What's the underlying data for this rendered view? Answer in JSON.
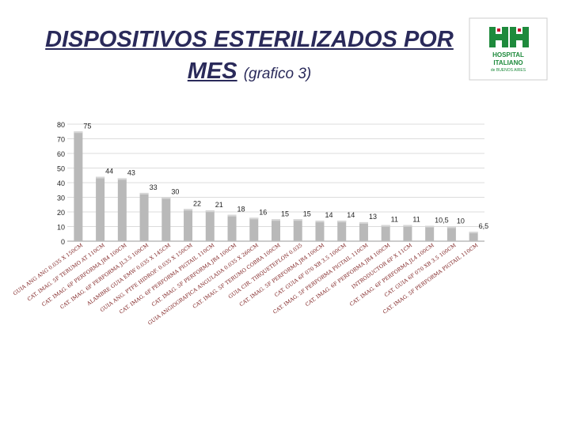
{
  "title": {
    "line1": "DISPOSITIVOS ESTERILIZADOS POR",
    "line2": "MES",
    "subtitle": "(grafico 3)"
  },
  "logo": {
    "line1": "HOSPITAL",
    "line2": "ITALIANO",
    "line3": "de BUENOS AIRES",
    "color": "#1e8a3c",
    "accent": "#c8102e"
  },
  "colors": {
    "bar": "#b9b9b9",
    "bar_top": "#d6d6d6",
    "grid": "#d0d0d0",
    "text": "#222222",
    "label": "#7a1a1a"
  },
  "chart_data": {
    "type": "bar",
    "ylim": [
      0,
      80
    ],
    "yticks": [
      0,
      10,
      20,
      30,
      40,
      50,
      60,
      70,
      80
    ],
    "grid": true,
    "categories": [
      "GUIA ANG ANG 0.035 X 150CM",
      "CAT. IMAG. 5F TERUMO AT 110CM",
      "CAT. IMAG. 6F PERFORMA JR4 100CM",
      "CAT. IMAG. 6F PERFORMA JL3.5 100CM",
      "ALAMBRE GUIA EMW 0.035 X 145CM",
      "GUIA ANG. PTFE HIDROF. 0.035 X 150CM",
      "CAT. IMAG. 6F PERFORMA PIGTAIL 110CM",
      "CAT. IMAG. 5F PERFORMA JR4 100CM",
      "GUIA ANGIOGRAFICA ANGULADA 0.035 X 260CM",
      "CAT. IMAG. 5F TERUMO COBRA 100CM",
      "GUIA CIR. TIRQUETEFLON 0.035",
      "CAT. IMAG. 5F PERFORMA JR4 100CM",
      "CAT. GUIA 6F 070 XB 3.5 100CM",
      "CAT. IMAG. 5F PERFORMA PIGTAIL 110CM",
      "CAT. IMAG. 6F PERFORMA JR4 100CM",
      "INTRODUCTOR 6F X 11CM",
      "CAT. IMAG. 6F PERFORMA JL4 100CM",
      "CAT. GUIA 6F 070 XB 3.5 100CM",
      "CAT. IMAG. 5F PERFORMA PIGTAIL 110CM"
    ],
    "values": [
      75,
      44,
      43,
      33,
      30,
      22,
      21,
      18,
      16,
      15,
      15,
      14,
      14,
      13,
      11,
      11,
      10.5,
      10,
      6.5
    ],
    "data_labels": [
      "75",
      "44",
      "43",
      "33",
      "30",
      "22",
      "21",
      "18",
      "16",
      "15",
      "15",
      "14",
      "14",
      "13",
      "11",
      "11",
      "10,5",
      "10",
      "6,5"
    ]
  }
}
